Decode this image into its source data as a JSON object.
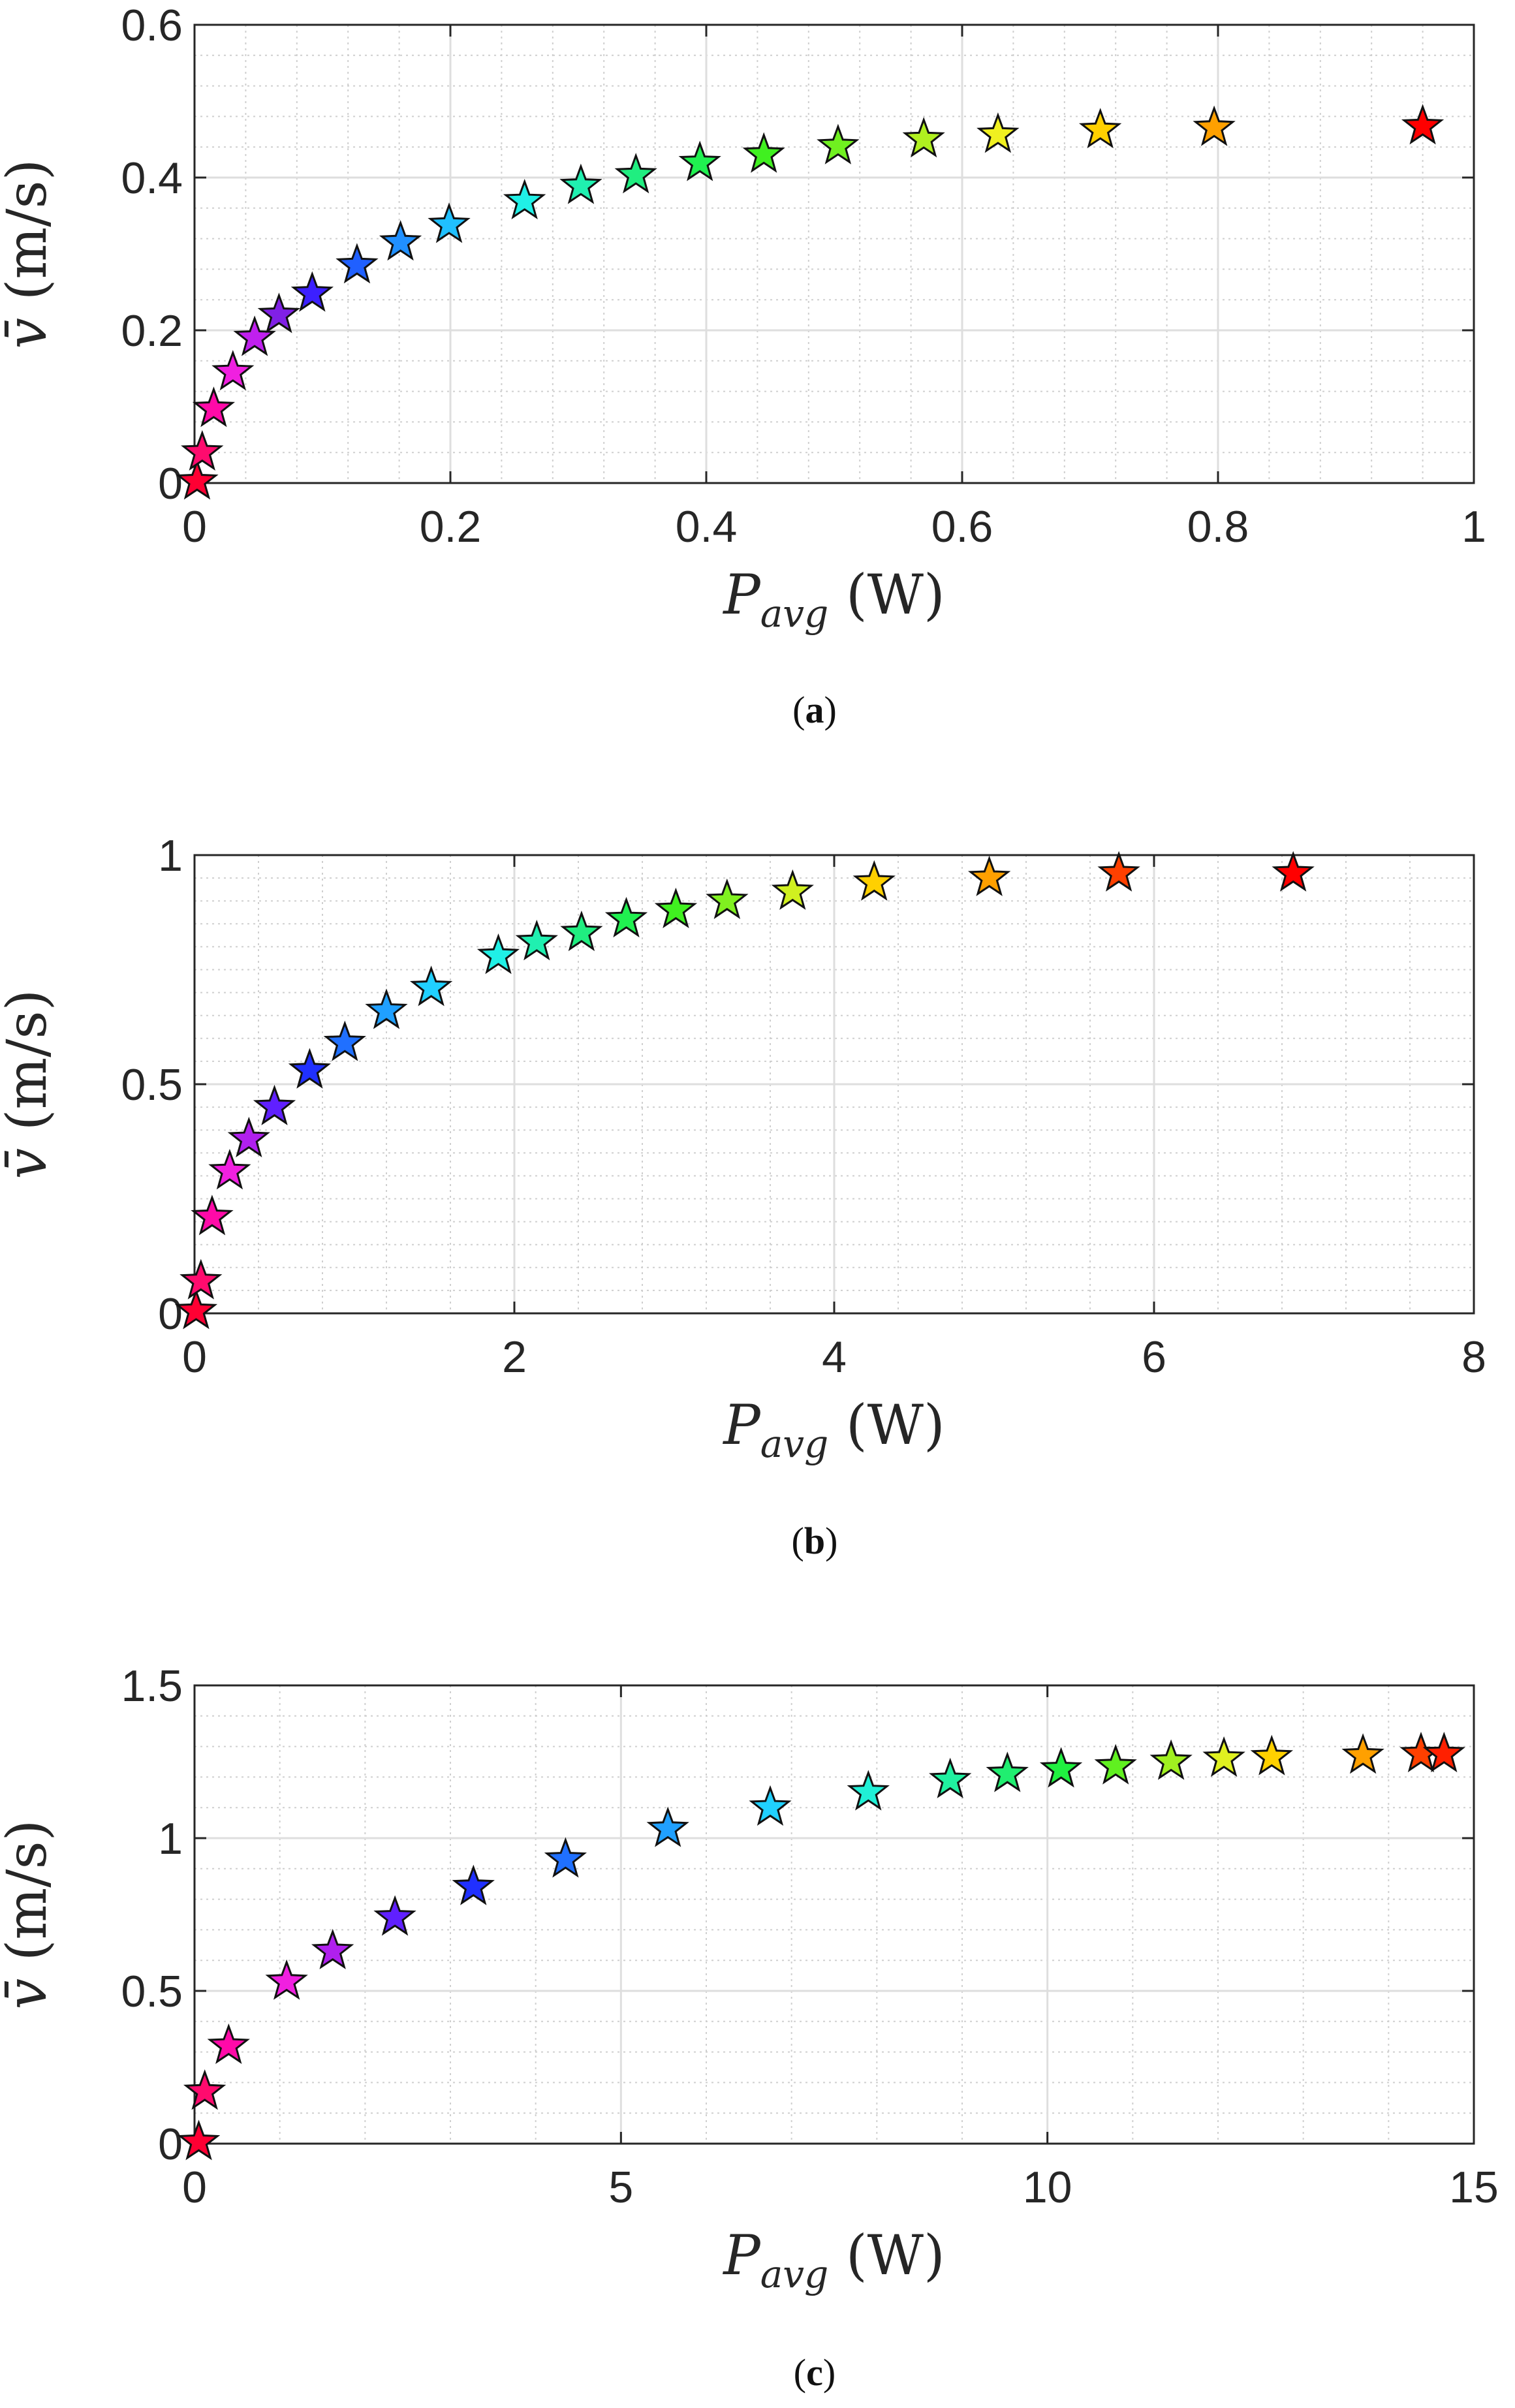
{
  "chart_data": [
    {
      "type": "scatter",
      "caption": "a",
      "xlabel": {
        "symbol": "P",
        "subscript": "avg",
        "unit": "(W)"
      },
      "ylabel": {
        "symbol": "v̄",
        "unit": "(m/s)"
      },
      "xlim": [
        0,
        1
      ],
      "ylim": [
        0,
        0.6
      ],
      "xticks": [
        0,
        0.2,
        0.4,
        0.6,
        0.8,
        1
      ],
      "xtick_labels": [
        "0",
        "0.2",
        "0.4",
        "0.6",
        "0.8",
        "1"
      ],
      "yticks": [
        0,
        0.2,
        0.4,
        0.6
      ],
      "ytick_labels": [
        "0",
        "0.2",
        "0.4",
        "0.6"
      ],
      "x_minor_step": 0.04,
      "y_minor_step": 0.04,
      "grid": true,
      "marker": "star",
      "colors": [
        "#ff0033",
        "#ff0b6e",
        "#ff0aa8",
        "#f020e0",
        "#c020ee",
        "#8020e6",
        "#3c20ff",
        "#2060ff",
        "#2090ff",
        "#20c0ff",
        "#20f0e6",
        "#20f0b0",
        "#20ee80",
        "#20f050",
        "#40f020",
        "#70f020",
        "#b0f020",
        "#f0f020",
        "#ffd000",
        "#ffa000",
        "#ff0000"
      ],
      "x": [
        0.002,
        0.006,
        0.015,
        0.03,
        0.047,
        0.066,
        0.092,
        0.127,
        0.161,
        0.199,
        0.258,
        0.302,
        0.345,
        0.395,
        0.445,
        0.503,
        0.57,
        0.628,
        0.708,
        0.797,
        0.96
      ],
      "y": [
        0.002,
        0.04,
        0.097,
        0.145,
        0.19,
        0.22,
        0.248,
        0.285,
        0.315,
        0.338,
        0.369,
        0.389,
        0.403,
        0.419,
        0.43,
        0.441,
        0.45,
        0.456,
        0.462,
        0.465,
        0.467
      ]
    },
    {
      "type": "scatter",
      "caption": "b",
      "xlabel": {
        "symbol": "P",
        "subscript": "avg",
        "unit": "(W)"
      },
      "ylabel": {
        "symbol": "v̄",
        "unit": "(m/s)"
      },
      "xlim": [
        0,
        8
      ],
      "ylim": [
        0,
        1
      ],
      "xticks": [
        0,
        2,
        4,
        6,
        8
      ],
      "xtick_labels": [
        "0",
        "2",
        "4",
        "6",
        "8"
      ],
      "yticks": [
        0,
        0.5,
        1
      ],
      "ytick_labels": [
        "0",
        "0.5",
        "1"
      ],
      "x_minor_step": 0.4,
      "y_minor_step": 0.05,
      "grid": true,
      "marker": "star",
      "colors": [
        "#ff0033",
        "#ff0b6e",
        "#ff0aa8",
        "#f020e0",
        "#b020ee",
        "#6020ff",
        "#2030ff",
        "#2070ff",
        "#20a0ff",
        "#20d0ff",
        "#20f0e6",
        "#20f0b0",
        "#20ee80",
        "#20f050",
        "#40f020",
        "#80f020",
        "#d0f020",
        "#ffd000",
        "#ffa000",
        "#ff4000",
        "#ff0000"
      ],
      "x": [
        0.01,
        0.04,
        0.11,
        0.22,
        0.34,
        0.5,
        0.72,
        0.94,
        1.2,
        1.48,
        1.9,
        2.14,
        2.42,
        2.7,
        3.01,
        3.33,
        3.74,
        4.25,
        4.97,
        5.78,
        6.87
      ],
      "y": [
        0.005,
        0.07,
        0.21,
        0.31,
        0.38,
        0.45,
        0.53,
        0.59,
        0.66,
        0.71,
        0.78,
        0.81,
        0.83,
        0.86,
        0.88,
        0.9,
        0.92,
        0.94,
        0.95,
        0.96,
        0.96
      ]
    },
    {
      "type": "scatter",
      "caption": "c",
      "xlabel": {
        "symbol": "P",
        "subscript": "avg",
        "unit": "(W)"
      },
      "ylabel": {
        "symbol": "v̄",
        "unit": "(m/s)"
      },
      "xlim": [
        0,
        15
      ],
      "ylim": [
        0,
        1.5
      ],
      "xticks": [
        0,
        5,
        10,
        15
      ],
      "xtick_labels": [
        "0",
        "5",
        "10",
        "15"
      ],
      "yticks": [
        0,
        0.5,
        1,
        1.5
      ],
      "ytick_labels": [
        "0",
        "0.5",
        "1",
        "1.5"
      ],
      "x_minor_step": 1,
      "y_minor_step": 0.1,
      "grid": true,
      "marker": "star",
      "colors": [
        "#ff0033",
        "#ff0b6e",
        "#ff0aa8",
        "#f020e0",
        "#b020ee",
        "#6020ff",
        "#2030ff",
        "#2070ff",
        "#20a0ff",
        "#20d0ff",
        "#20f0d6",
        "#20f0a0",
        "#20ee70",
        "#20f040",
        "#60f020",
        "#a0f020",
        "#e0f020",
        "#ffd000",
        "#ffa000",
        "#ff4000",
        "#ff2000"
      ],
      "x": [
        0.05,
        0.12,
        0.4,
        1.08,
        1.62,
        2.35,
        3.27,
        4.35,
        5.55,
        6.75,
        7.9,
        8.86,
        9.53,
        10.16,
        10.8,
        11.45,
        12.07,
        12.63,
        13.7,
        14.38,
        14.65
      ],
      "y": [
        0.005,
        0.17,
        0.32,
        0.53,
        0.63,
        0.74,
        0.84,
        0.93,
        1.03,
        1.1,
        1.15,
        1.19,
        1.21,
        1.225,
        1.235,
        1.25,
        1.26,
        1.265,
        1.27,
        1.275,
        1.275
      ]
    }
  ]
}
